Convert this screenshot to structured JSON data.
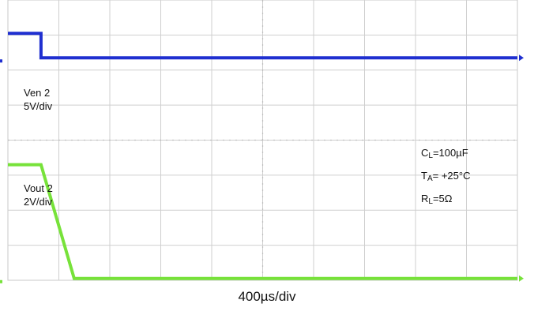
{
  "chart_data": {
    "type": "line",
    "title": "",
    "grid": true,
    "divisions": {
      "x": 10,
      "y": 8
    },
    "xlabel": "400µs/div",
    "x_unit": "µs",
    "xlim": [
      0,
      4000
    ],
    "series": [
      {
        "name": "Ven 2",
        "scale": "5V/div",
        "color": "#1f2fd0",
        "unit": "div",
        "x": [
          0,
          260,
          260,
          4000
        ],
        "y": [
          7.05,
          7.05,
          6.35,
          6.35
        ]
      },
      {
        "name": "Vout 2",
        "scale": "2V/div",
        "color": "#77e23a",
        "unit": "div",
        "x": [
          0,
          260,
          520,
          4000
        ],
        "y": [
          3.3,
          3.3,
          0.05,
          0.05
        ]
      }
    ],
    "annotations": {
      "ch1_label": "Ven 2",
      "ch1_scale": "5V/div",
      "ch2_label": "Vout 2",
      "ch2_scale": "2V/div",
      "cond_cl_main": "C",
      "cond_cl_sub": "L",
      "cond_cl_val": "=100µF",
      "cond_ta_main": "T",
      "cond_ta_sub": "A",
      "cond_ta_val": "= +25°C",
      "cond_rl_main": "R",
      "cond_rl_sub": "L",
      "cond_rl_val": "=5Ω"
    }
  }
}
